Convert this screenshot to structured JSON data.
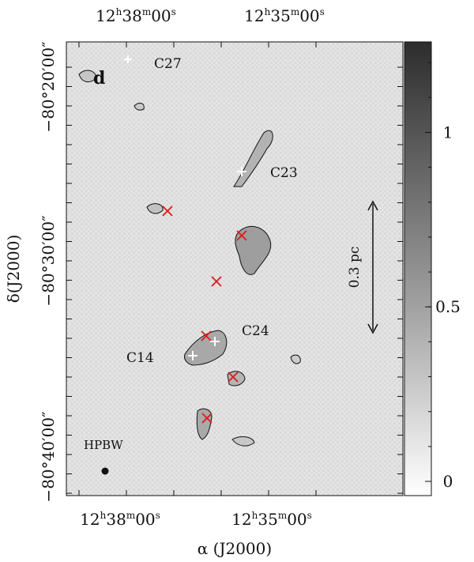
{
  "chart_data": {
    "type": "heatmap",
    "panel_label": "d",
    "xlabel": "α (J2000)",
    "ylabel": "δ(J2000)",
    "x_ticks_bottom": [
      {
        "h": "12",
        "m": "38",
        "s": "00"
      },
      {
        "h": "12",
        "m": "35",
        "s": "00"
      }
    ],
    "x_ticks_top": [
      {
        "h": "12",
        "m": "38",
        "s": "00"
      },
      {
        "h": "12",
        "m": "35",
        "s": "00"
      }
    ],
    "y_ticks": [
      {
        "text": "−80°20′00″"
      },
      {
        "text": "−80°30′00″"
      },
      {
        "text": "−80°40′00″"
      }
    ],
    "colorbar": {
      "range": [
        0,
        1.3
      ],
      "ticks": [
        {
          "value": 0,
          "label": "0"
        },
        {
          "value": 0.5,
          "label": "0.5"
        },
        {
          "value": 1,
          "label": "1"
        }
      ],
      "colors": [
        "#ffffff",
        "#2d2d2d"
      ]
    },
    "clump_labels": [
      "C27",
      "C23",
      "C24",
      "C14"
    ],
    "scale_bar_label": "0.3 pc",
    "beam_label": "HPBW",
    "markers_red_x": 6,
    "marker_color": "#e0191b"
  }
}
